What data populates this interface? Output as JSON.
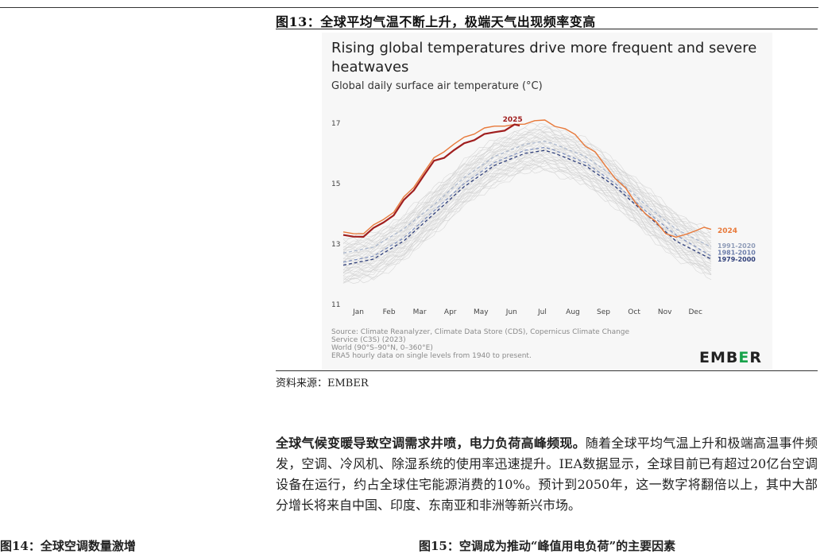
{
  "figure": {
    "title": "图13：全球平均气温不断上升，极端天气出现频率变高",
    "source_note": "资料来源：EMBER"
  },
  "body": {
    "bold": "全球气候变暖导致空调需求井喷，电力负荷高峰频现。",
    "text": "随着全球平均气温上升和极端高温事件频发，空调、冷风机、除湿系统的使用率迅速提升。IEA数据显示，全球目前已有超过20亿台空调设备在运行，约占全球住宅能源消费的10%。预计到2050年，这一数字将翻倍以上，其中大部分增长将来自中国、印度、东南亚和非洲等新兴市场。"
  },
  "next_figures": {
    "left": "图14：全球空调数量激增",
    "right": "图15：空调成为推动“峰值用电负荷”的主要因素"
  },
  "brand": {
    "logo": "EMB",
    "logo_e": "E",
    "logo_tail": "R"
  },
  "chart_data": {
    "type": "line",
    "title": "Rising global temperatures drive more frequent and severe heatwaves",
    "subtitle": "Global daily surface air temperature (°C)",
    "ylim": [
      11,
      17
    ],
    "yticks": [
      11,
      13,
      15,
      17
    ],
    "xlim": [
      0,
      365
    ],
    "month_labels": [
      "Jan",
      "Feb",
      "Mar",
      "Apr",
      "May",
      "Jun",
      "Jul",
      "Aug",
      "Sep",
      "Oct",
      "Nov",
      "Dec"
    ],
    "series": [
      {
        "name": "2025",
        "color": "#a01e1e",
        "width": 2.2,
        "x": [
          0,
          10,
          20,
          30,
          40,
          50,
          60,
          70,
          80,
          90,
          100,
          110,
          120,
          130,
          140,
          150,
          160,
          170,
          175
        ],
        "y": [
          13.3,
          13.2,
          13.3,
          13.5,
          13.7,
          14.0,
          14.4,
          14.8,
          15.3,
          15.7,
          15.9,
          16.1,
          16.3,
          16.5,
          16.6,
          16.7,
          16.8,
          16.9,
          16.95
        ]
      },
      {
        "name": "2024",
        "color": "#e8793a",
        "width": 1.4,
        "x": [
          0,
          10,
          20,
          30,
          40,
          50,
          60,
          70,
          80,
          90,
          100,
          110,
          120,
          130,
          140,
          150,
          160,
          170,
          180,
          190,
          200,
          210,
          220,
          230,
          240,
          250,
          260,
          270,
          280,
          290,
          300,
          310,
          320,
          330,
          340,
          350,
          358,
          365
        ],
        "y": [
          13.4,
          13.3,
          13.4,
          13.6,
          13.8,
          14.1,
          14.5,
          14.9,
          15.4,
          15.8,
          16.1,
          16.3,
          16.5,
          16.7,
          16.8,
          16.9,
          16.95,
          16.9,
          17.0,
          17.1,
          17.05,
          16.95,
          16.8,
          16.6,
          16.3,
          16.0,
          15.6,
          15.2,
          14.8,
          14.4,
          14.0,
          13.7,
          13.4,
          13.2,
          13.3,
          13.5,
          13.5,
          13.5
        ]
      },
      {
        "name": "1991-2020",
        "color": "#a9b6cc",
        "width": 1.2,
        "dash": "4 3",
        "x": [
          0,
          30,
          60,
          90,
          120,
          150,
          180,
          200,
          210,
          240,
          270,
          300,
          330,
          365
        ],
        "y": [
          12.7,
          12.9,
          13.5,
          14.3,
          15.2,
          15.9,
          16.3,
          16.4,
          16.3,
          15.9,
          15.2,
          14.3,
          13.5,
          12.9
        ]
      },
      {
        "name": "1981-2010",
        "color": "#7b8dbb",
        "width": 1.2,
        "dash": "4 3",
        "x": [
          0,
          30,
          60,
          90,
          120,
          150,
          180,
          200,
          210,
          240,
          270,
          300,
          330,
          365
        ],
        "y": [
          12.4,
          12.6,
          13.2,
          14.1,
          15.0,
          15.7,
          16.1,
          16.2,
          16.1,
          15.7,
          15.0,
          14.1,
          13.3,
          12.6
        ]
      },
      {
        "name": "1979-2000",
        "color": "#2f3f7a",
        "width": 1.3,
        "dash": "4 3",
        "x": [
          0,
          30,
          60,
          90,
          120,
          150,
          180,
          200,
          210,
          240,
          270,
          300,
          330,
          365
        ],
        "y": [
          12.3,
          12.5,
          13.1,
          14.0,
          14.9,
          15.6,
          16.0,
          16.1,
          16.0,
          15.6,
          14.9,
          14.0,
          13.1,
          12.5
        ]
      }
    ],
    "annotations": [
      "2025",
      "2024"
    ],
    "source_lines": [
      "Source: Climate Reanalyzer, Climate Data Store (CDS), Copernicus Climate Change",
      "Service (C3S) (2023)",
      "World (90°S–90°N, 0–360°E)",
      "ERA5 hourly data on single levels from 1940 to present."
    ]
  }
}
